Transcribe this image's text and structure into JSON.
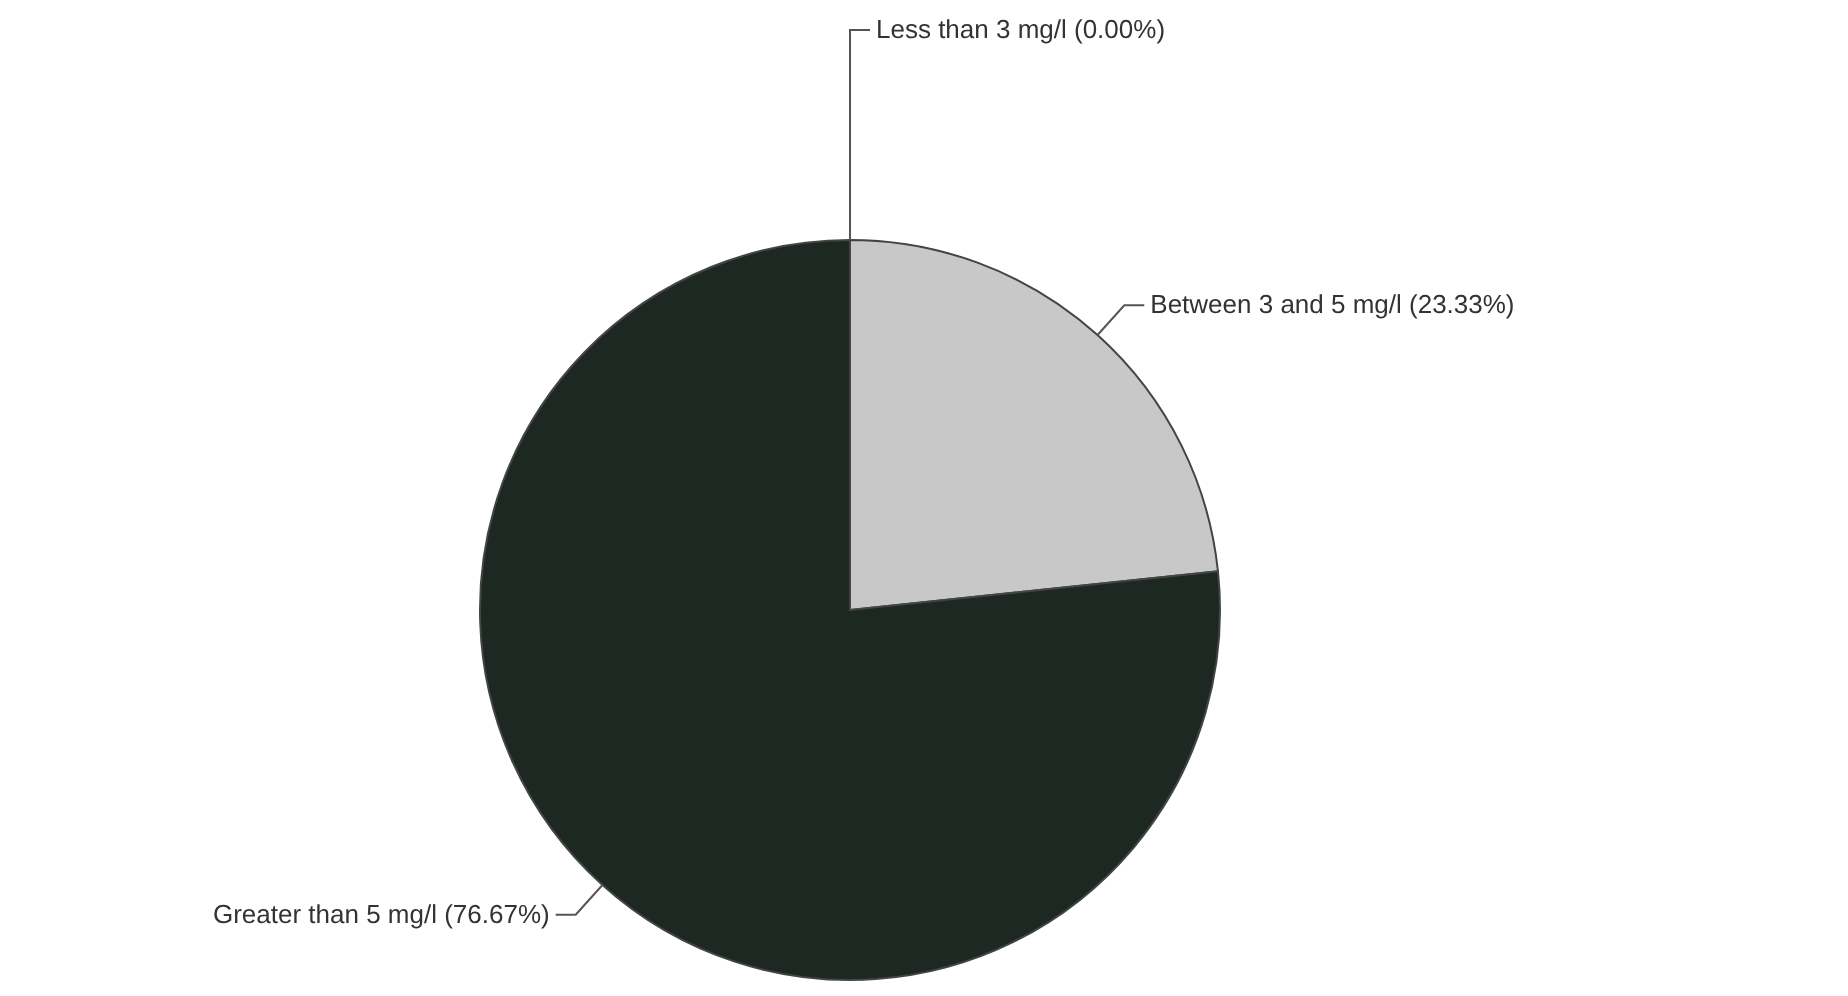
{
  "chart_data": {
    "type": "pie",
    "categories": [
      "Less than 3 mg/l (0.00%)",
      "Between 3 and 5 mg/l (23.33%)",
      "Greater than 5 mg/l (76.67%)"
    ],
    "values": [
      0.0,
      23.33,
      76.67
    ],
    "colors": [
      "#ffffff",
      "#c8c8c8",
      "#1e2822"
    ]
  }
}
